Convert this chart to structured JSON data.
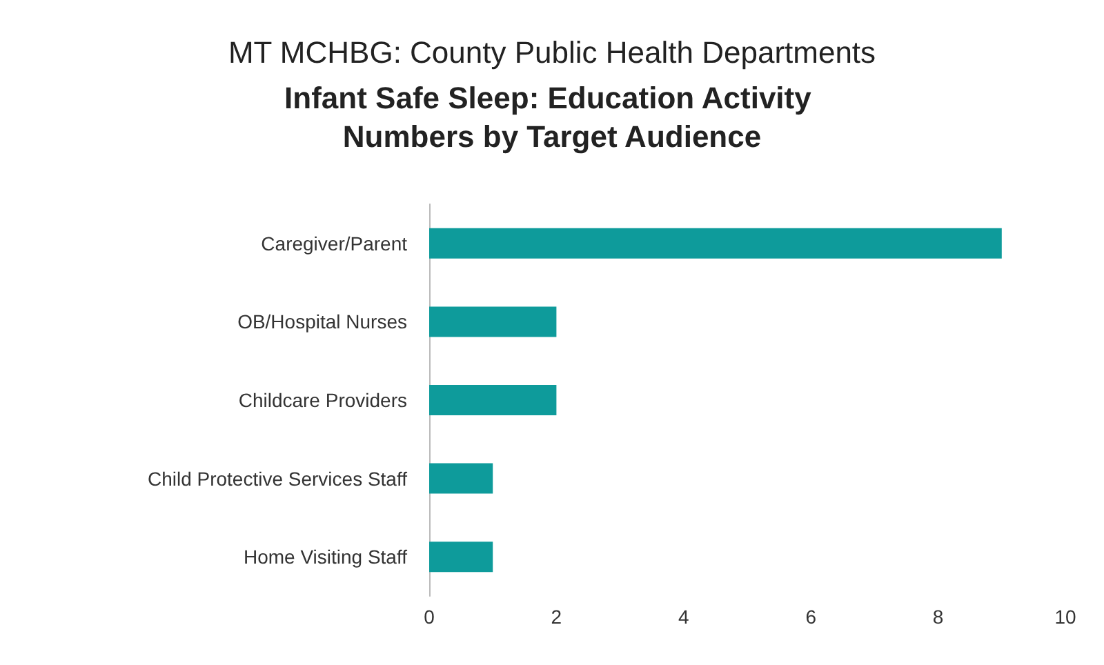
{
  "chart_data": {
    "type": "bar",
    "orientation": "horizontal",
    "title": "MT MCHBG: County Public Health Departments",
    "subtitle": "Infant Safe Sleep: Education Activity Numbers by Target Audience",
    "categories": [
      "Caregiver/Parent",
      "OB/Hospital Nurses",
      "Childcare Providers",
      "Child Protective Services Staff",
      "Home Visiting Staff"
    ],
    "values": [
      9,
      2,
      2,
      1,
      1
    ],
    "color": "#0e9b9b",
    "xlim": [
      0,
      10
    ],
    "xticks": [
      0,
      2,
      4,
      6,
      8,
      10
    ],
    "grid": false
  }
}
